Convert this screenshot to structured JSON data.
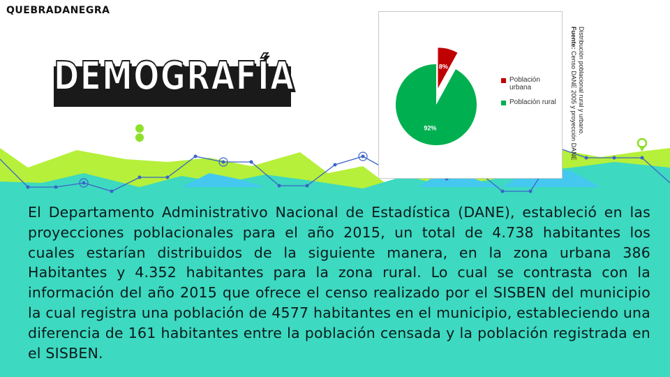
{
  "brand": "QUEBRADANEGRA",
  "title": "DEMOGRAFÍA",
  "body_text": "El Departamento Administrativo Nacional de Estadística (DANE), estableció en las proyecciones poblacionales para el año 2015, un total de 4.738 habitantes los cuales estarían distribuidos de la siguiente manera, en la zona urbana 386 Habitantes y 4.352 habitantes para la zona rural. Lo cual se contrasta con la información del año 2015 que ofrece el censo realizado por el SISBEN del municipio la cual registra una población de 4577 habitantes en el municipio, estableciendo una diferencia de 161 habitantes entre la población censada y la población registrada en el SISBEN.",
  "caption": {
    "line1": "Distribución poblacional rural y urbano.",
    "source_label": "Fuente:",
    "source_text": "Censo DANE 2005 y proyección DANE"
  },
  "chart_data": {
    "type": "pie",
    "categories": [
      "Población urbana",
      "Población rural"
    ],
    "values": [
      8,
      92
    ],
    "labels": [
      "8%",
      "92%"
    ],
    "colors": [
      "#c00000",
      "#00b050"
    ],
    "legend_position": "right"
  },
  "colors": {
    "teal": "#3dd9c1",
    "lime": "#b6f03a",
    "sky": "#44c8f0",
    "line_blue": "#3b63c9",
    "dark": "#1a1a1a"
  }
}
